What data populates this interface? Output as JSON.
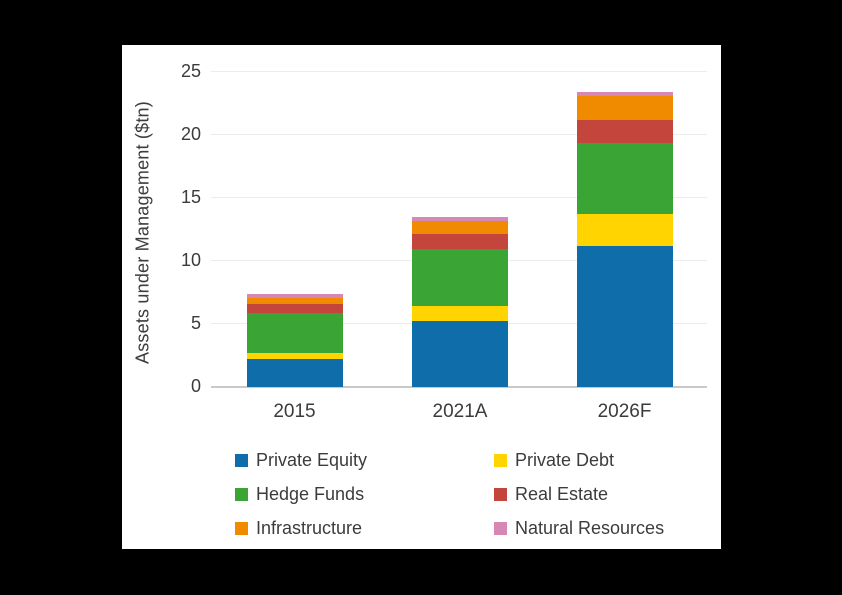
{
  "chart_data": {
    "type": "bar",
    "stacked": true,
    "title": "",
    "xlabel": "",
    "ylabel": "Assets under Management ($tn)",
    "categories": [
      "2015",
      "2021A",
      "2026F"
    ],
    "series": [
      {
        "name": "Private Equity",
        "color": "#0f6eaa",
        "values": [
          2.3,
          5.3,
          11.2
        ]
      },
      {
        "name": "Private Debt",
        "color": "#ffd400",
        "values": [
          0.4,
          1.2,
          2.6
        ]
      },
      {
        "name": "Hedge Funds",
        "color": "#3aa535",
        "values": [
          3.2,
          4.5,
          5.6
        ]
      },
      {
        "name": "Real Estate",
        "color": "#c4453c",
        "values": [
          0.75,
          1.15,
          1.85
        ]
      },
      {
        "name": "Infrastructure",
        "color": "#f08b00",
        "values": [
          0.45,
          1.1,
          1.9
        ]
      },
      {
        "name": "Natural Resources",
        "color": "#d687b4",
        "values": [
          0.3,
          0.3,
          0.3
        ]
      }
    ],
    "totals": [
      7.4,
      13.5,
      23.45
    ],
    "y_ticks": [
      0,
      5,
      10,
      15,
      20,
      25
    ],
    "ylim": [
      0,
      25
    ],
    "grid": true,
    "legend_position": "bottom",
    "legend_columns": 2,
    "legend_order": [
      "Private Equity",
      "Private Debt",
      "Hedge Funds",
      "Real Estate",
      "Infrastructure",
      "Natural Resources"
    ]
  },
  "colors": {
    "page_background": "#000000",
    "panel_background": "#ffffff",
    "gridline": "#ececec",
    "axis_line": "#c9c9c9",
    "text": "#3b3b3b"
  }
}
